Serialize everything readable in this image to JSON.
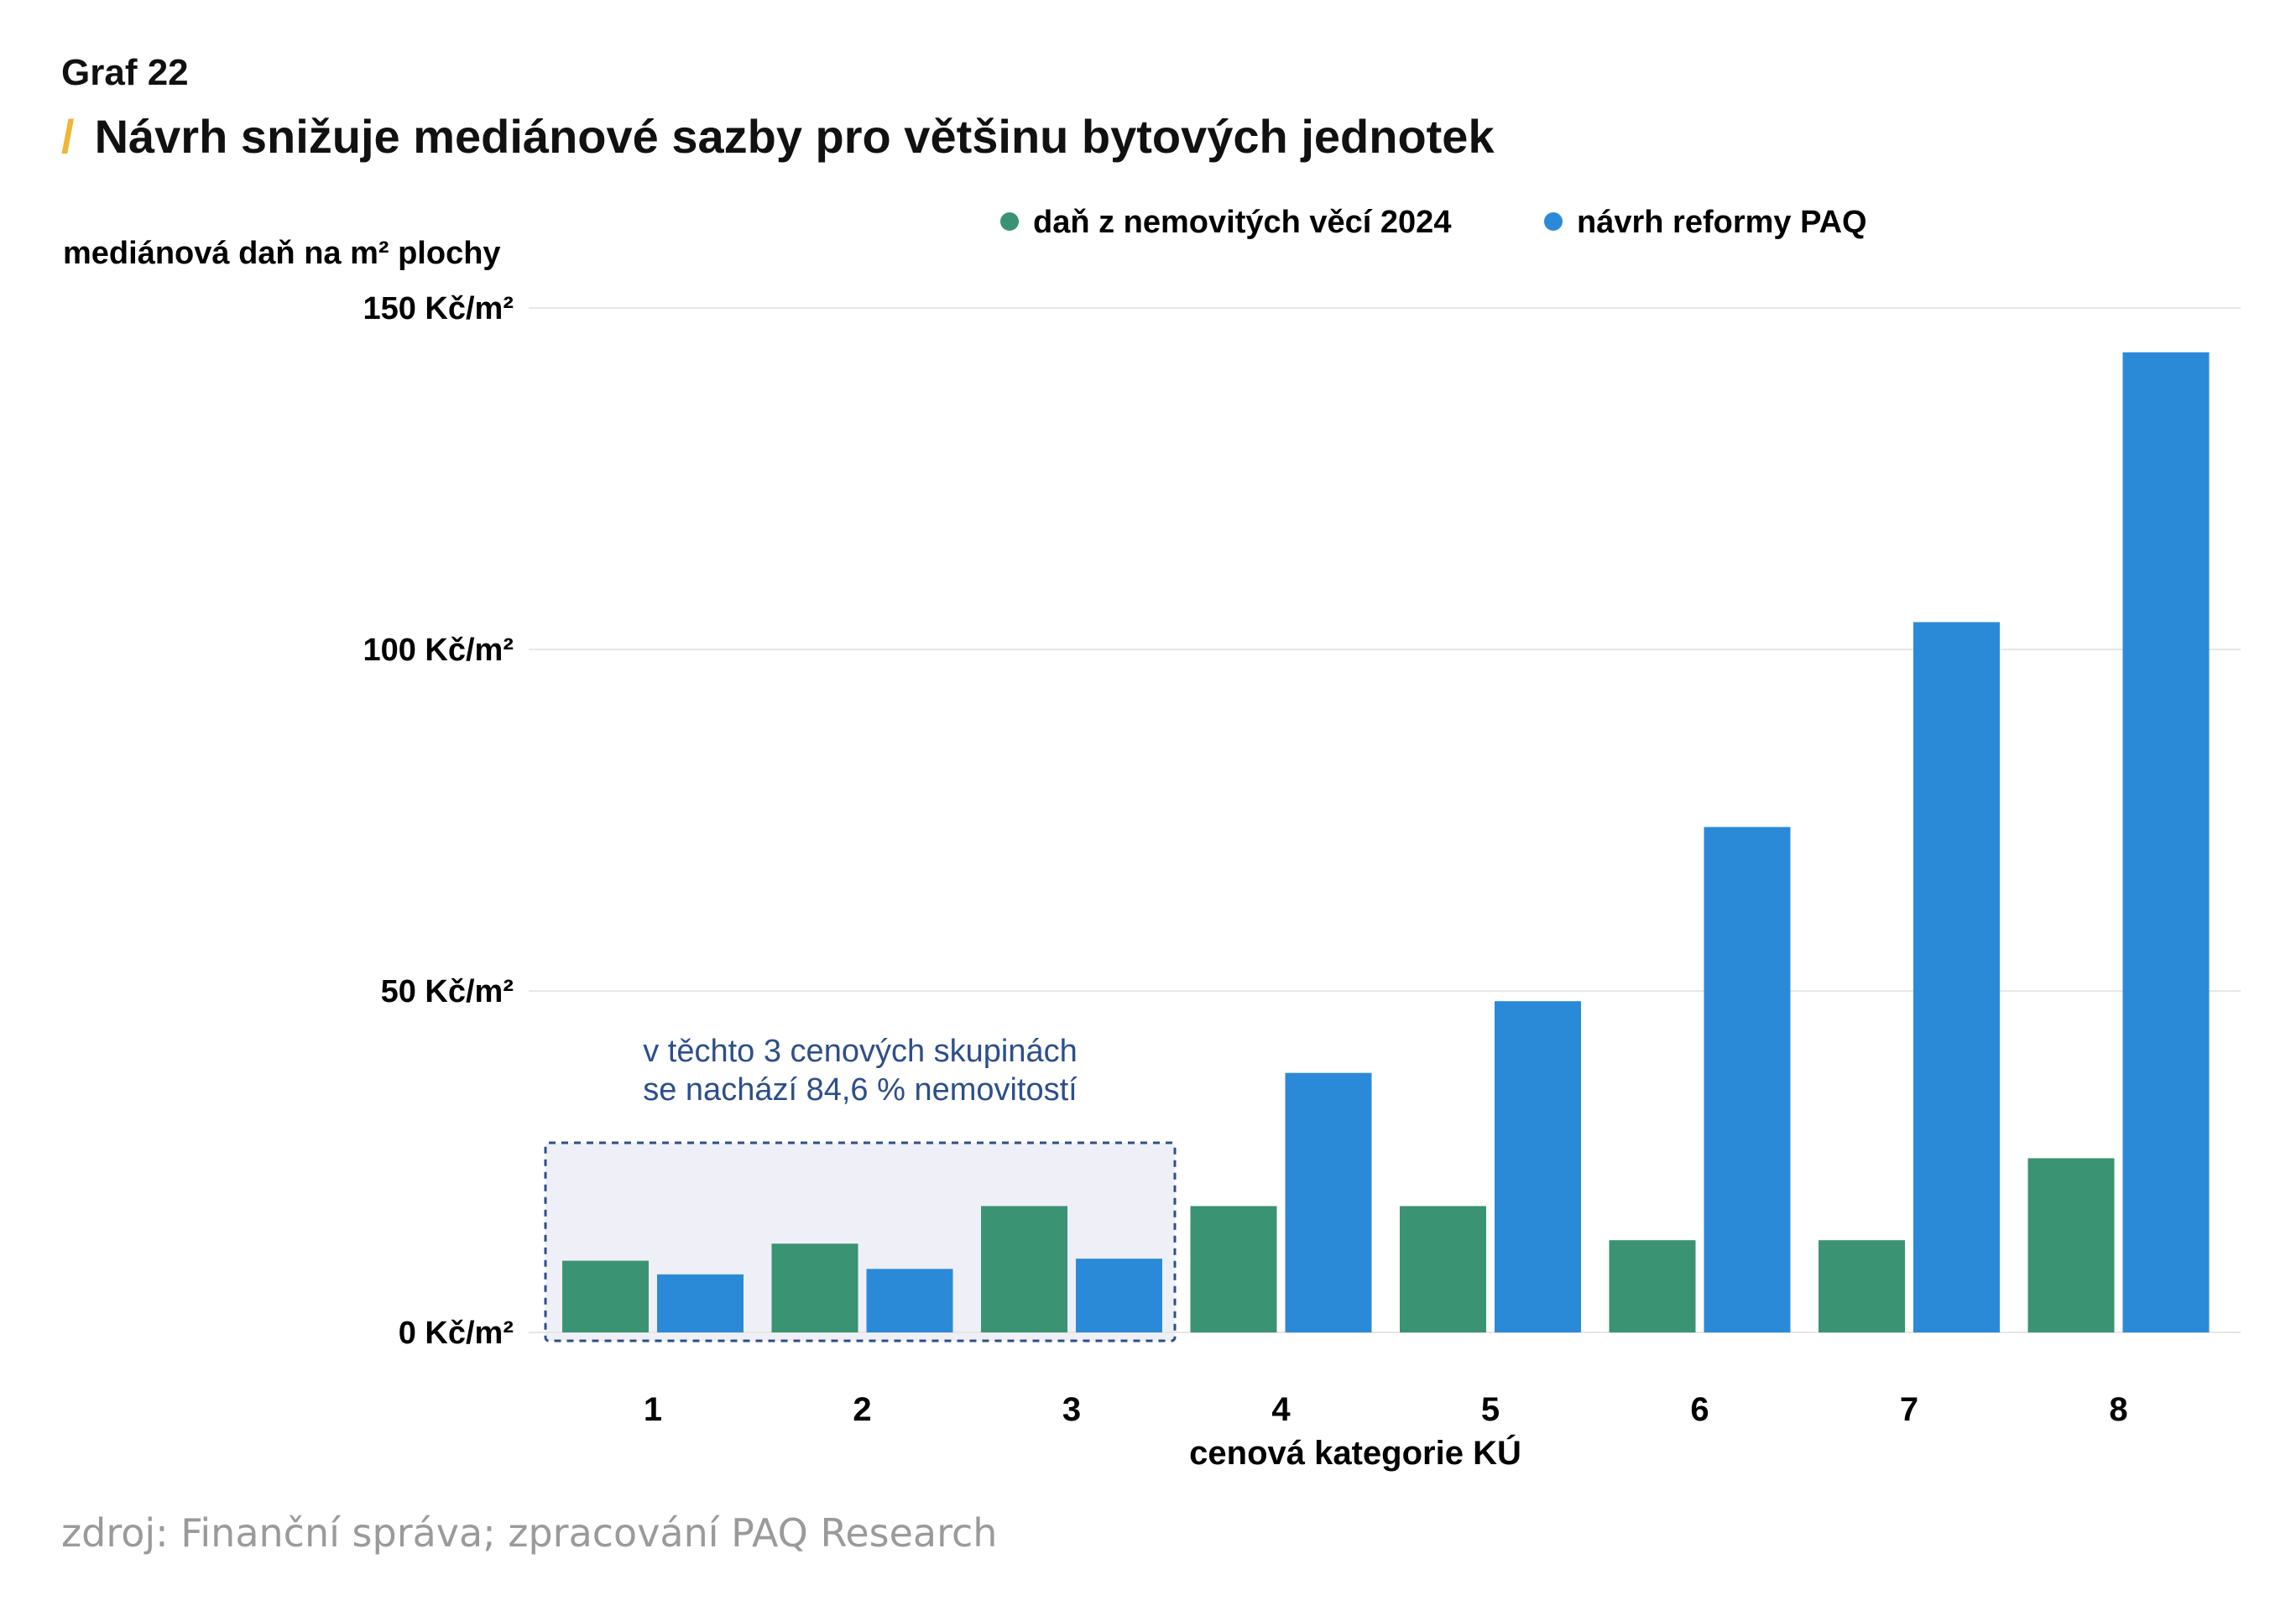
{
  "header": {
    "graf_label": "Graf 22",
    "title": "Návrh snižuje mediánové sazby pro většinu bytových jednotek"
  },
  "colors": {
    "accent_slash": "#f2b535",
    "series_2024": "#3a9373",
    "series_paq": "#2b8ad8",
    "highlight_fill": "#eff0f7",
    "highlight_border": "#2c4f8a"
  },
  "chart_data": {
    "type": "bar",
    "ylabel": "mediánová daň na m² plochy",
    "xlabel": "cenová kategorie KÚ",
    "ylim": [
      0,
      150
    ],
    "yticks": [
      {
        "value": 0,
        "label": "0 Kč/m²"
      },
      {
        "value": 50,
        "label": "50 Kč/m²"
      },
      {
        "value": 100,
        "label": "100 Kč/m²"
      },
      {
        "value": 150,
        "label": "150 Kč/m²"
      }
    ],
    "categories": [
      "1",
      "2",
      "3",
      "4",
      "5",
      "6",
      "7",
      "8"
    ],
    "series": [
      {
        "name": "daň z nemovitých věcí 2024",
        "color": "#3a9373",
        "values": [
          10.5,
          13,
          18.5,
          18.5,
          18.5,
          13.5,
          13.5,
          25.5
        ]
      },
      {
        "name": "návrh reformy PAQ",
        "color": "#2b8ad8",
        "values": [
          8.5,
          9.3,
          10.8,
          38,
          48.5,
          74,
          104,
          143.5
        ]
      }
    ],
    "grid": true,
    "legend_position": "top",
    "annotation": {
      "categories": [
        "1",
        "2",
        "3"
      ],
      "lines": [
        "v těchto 3 cenových skupinách",
        "se nachází 84,6 % nemovitostí"
      ]
    }
  },
  "source": "zdroj: Finanční správa; zpracování PAQ Research"
}
